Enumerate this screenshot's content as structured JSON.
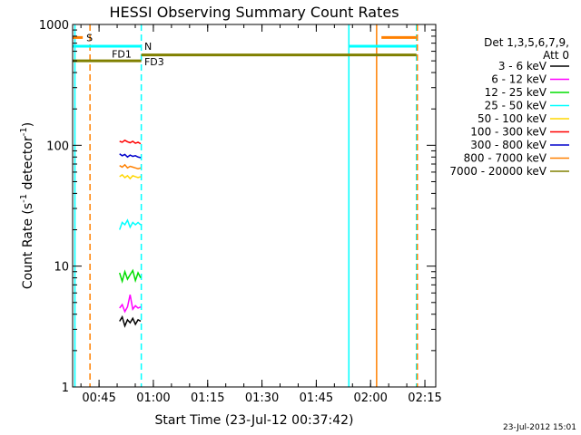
{
  "chart_data": {
    "type": "line",
    "title": "HESSI Observing Summary Count Rates",
    "xlabel": "Start Time (23-Jul-12 00:37:42)",
    "ylabel_parts": [
      "Count Rate (s",
      "-1",
      " detector",
      "-1",
      ")"
    ],
    "y_scale": "log",
    "ylim": [
      1,
      1000
    ],
    "xlim": [
      "00:37:42",
      "02:18:00"
    ],
    "grid": false,
    "y_ticks": [
      {
        "value": 1,
        "label": "1"
      },
      {
        "value": 10,
        "label": "10"
      },
      {
        "value": 100,
        "label": "100"
      },
      {
        "value": 1000,
        "label": "1000"
      }
    ],
    "x_ticks": [
      {
        "time": "00:45",
        "label": "00:45"
      },
      {
        "time": "01:00",
        "label": "01:00"
      },
      {
        "time": "01:15",
        "label": "01:15"
      },
      {
        "time": "01:30",
        "label": "01:30"
      },
      {
        "time": "01:45",
        "label": "01:45"
      },
      {
        "time": "02:00",
        "label": "02:00"
      },
      {
        "time": "02:15",
        "label": "02:15"
      }
    ],
    "legend": {
      "placement": "right",
      "header": [
        "Det 1,3,5,6,7,9,",
        "Att 0"
      ],
      "entries": [
        {
          "label": "3 - 6 keV",
          "color": "#000000"
        },
        {
          "label": "6 - 12 keV",
          "color": "#ff00ff"
        },
        {
          "label": "12 - 25 keV",
          "color": "#00dd00"
        },
        {
          "label": "25 - 50 keV",
          "color": "#00ffff"
        },
        {
          "label": "50 - 100 keV",
          "color": "#ffd700"
        },
        {
          "label": "100 - 300 keV",
          "color": "#ff0000"
        },
        {
          "label": "300 - 800 keV",
          "color": "#0000cc"
        },
        {
          "label": "800 - 7000 keV",
          "color": "#ff8000"
        },
        {
          "label": "7000 - 20000 keV",
          "color": "#808000"
        }
      ]
    },
    "series": [
      {
        "name": "3 - 6 keV",
        "color": "#000000",
        "start": "00:50:40",
        "end": "00:56:30",
        "values": [
          3.5,
          3.8,
          3.2,
          3.6,
          3.4,
          3.7,
          3.3,
          3.6,
          3.5
        ]
      },
      {
        "name": "6 - 12 keV",
        "color": "#ff00ff",
        "start": "00:50:40",
        "end": "00:56:30",
        "values": [
          4.5,
          4.8,
          4.2,
          4.6,
          5.8,
          4.4,
          4.7,
          4.5,
          4.6
        ]
      },
      {
        "name": "12 - 25 keV",
        "color": "#00dd00",
        "start": "00:50:40",
        "end": "00:56:30",
        "values": [
          8.8,
          7.5,
          9.0,
          7.8,
          8.5,
          9.2,
          7.6,
          8.8,
          8.0
        ]
      },
      {
        "name": "25 - 50 keV",
        "color": "#00ffff",
        "start": "00:50:40",
        "end": "00:56:30",
        "values": [
          20,
          23,
          22,
          24,
          21,
          23,
          22,
          23,
          22
        ]
      },
      {
        "name": "50 - 100 keV",
        "color": "#ffd700",
        "start": "00:50:40",
        "end": "00:56:30",
        "values": [
          55,
          57,
          54,
          56,
          53,
          56,
          55,
          54,
          55
        ]
      },
      {
        "name": "100 - 300 keV",
        "color": "#ff0000",
        "start": "00:50:40",
        "end": "00:56:30",
        "values": [
          108,
          106,
          110,
          107,
          105,
          108,
          104,
          106,
          103
        ]
      },
      {
        "name": "300 - 800 keV",
        "color": "#0000cc",
        "start": "00:50:40",
        "end": "00:56:30",
        "values": [
          85,
          82,
          84,
          80,
          83,
          81,
          82,
          80,
          79
        ]
      },
      {
        "name": "800 - 7000 keV",
        "color": "#ff8000",
        "start": "00:50:40",
        "end": "00:56:30",
        "values": [
          68,
          66,
          69,
          65,
          67,
          66,
          65,
          64,
          65
        ]
      }
    ],
    "flag_bars": [
      {
        "label": "S",
        "color": "#ff8000",
        "value": 780,
        "segments": [
          [
            "00:37:42",
            "00:40:30"
          ],
          [
            "02:03:00",
            "02:12:40"
          ]
        ]
      },
      {
        "label": "N",
        "color": "#00ffff",
        "value": 660,
        "segments": [
          [
            "00:37:42",
            "00:56:40"
          ],
          [
            "01:54:00",
            "02:12:40"
          ]
        ]
      },
      {
        "label": "FD1",
        "color": "#808000",
        "value": 560,
        "segments": [
          [
            "00:56:40",
            "02:12:40"
          ]
        ]
      },
      {
        "label": "FD3",
        "color": "#808000",
        "value": 500,
        "segments": [
          [
            "00:37:42",
            "00:56:40"
          ]
        ]
      }
    ],
    "markers": [
      {
        "time": "00:38:20",
        "color": "#00ffff",
        "style": "solid"
      },
      {
        "time": "00:42:30",
        "color": "#ff8000",
        "style": "dashed"
      },
      {
        "time": "00:56:40",
        "color": "#00ffff",
        "style": "dashed"
      },
      {
        "time": "01:54:00",
        "color": "#00ffff",
        "style": "solid"
      },
      {
        "time": "02:01:40",
        "color": "#ff8000",
        "style": "solid"
      },
      {
        "time": "02:12:40",
        "color": "#00ffff",
        "style": "dashed"
      },
      {
        "time": "02:12:55",
        "color": "#ff8000",
        "style": "dashed"
      }
    ]
  },
  "footer": {
    "timestamp": "23-Jul-2012 15:01"
  }
}
